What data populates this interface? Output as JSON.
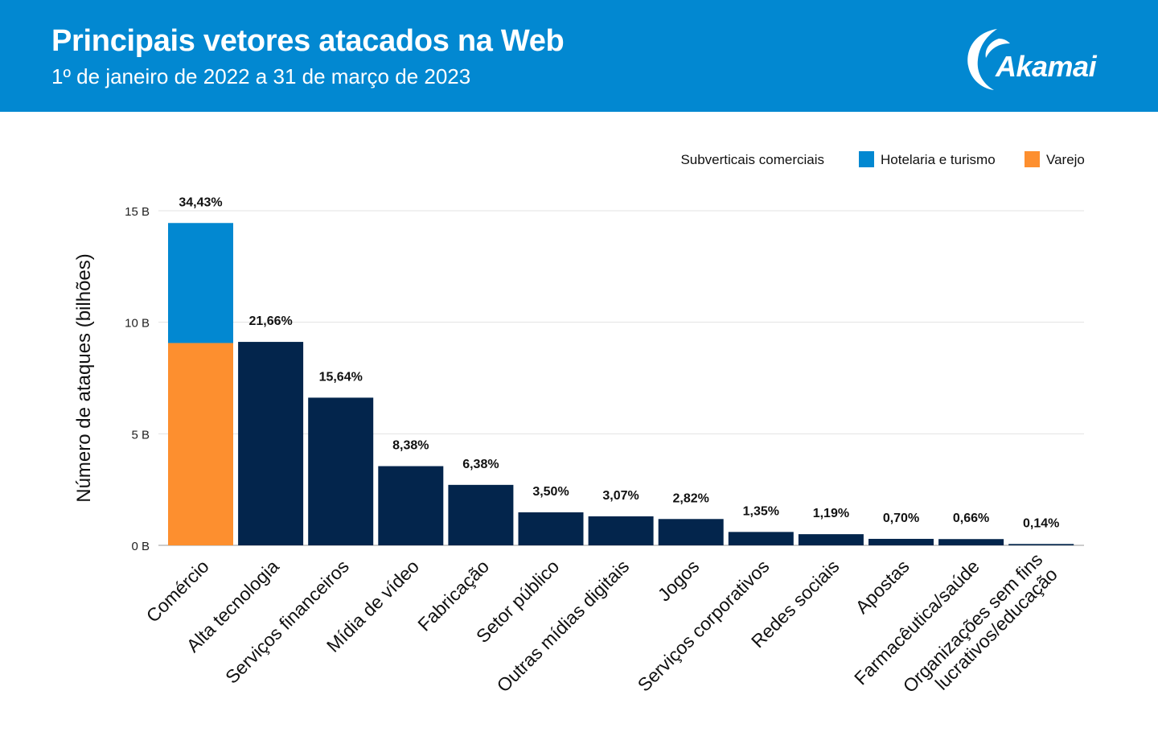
{
  "header": {
    "title": "Principais vetores atacados na Web",
    "subtitle": "1º de janeiro de 2022 a 31 de março de 2023",
    "logo_text": "Akamai"
  },
  "colors": {
    "header_bg": "#0288d1",
    "bar": "#03254c",
    "hospitality": "#0288d1",
    "retail": "#fd8f2f",
    "grid": "#e3e3e3"
  },
  "chart_data": {
    "type": "bar",
    "ylabel": "Número de ataques (bilhões)",
    "ylim": [
      0,
      15
    ],
    "yticks": [
      {
        "value": 0,
        "label": "0 B"
      },
      {
        "value": 5,
        "label": "5 B"
      },
      {
        "value": 10,
        "label": "10 B"
      },
      {
        "value": 15,
        "label": "15 B"
      }
    ],
    "grid": true,
    "legend": {
      "position": "top-right",
      "title": "Subverticais comerciais",
      "items": [
        {
          "label": "Hotelaria e turismo",
          "color": "#0288d1"
        },
        {
          "label": "Varejo",
          "color": "#fd8f2f"
        }
      ]
    },
    "categories": [
      "Comércio",
      "Alta tecnologia",
      "Serviços financeiros",
      "Mídia de vídeo",
      "Fabricação",
      "Setor público",
      "Outras mídias digitais",
      "Jogos",
      "Serviços corporativos",
      "Redes sociais",
      "Apostas",
      "Farmacêutica/saúde",
      "Organizações sem fins lucrativos/educação"
    ],
    "values": [
      14.45,
      9.12,
      6.62,
      3.55,
      2.71,
      1.48,
      1.3,
      1.18,
      0.6,
      0.5,
      0.29,
      0.28,
      0.06
    ],
    "percent_labels": [
      "34,43%",
      "21,66%",
      "15,64%",
      "8,38%",
      "6,38%",
      "3,50%",
      "3,07%",
      "2,82%",
      "1,35%",
      "1,19%",
      "0,70%",
      "0,66%",
      "0,14%"
    ],
    "stacked_first": [
      {
        "name": "Varejo",
        "value": 9.07
      },
      {
        "name": "Hotelaria e turismo",
        "value": 5.38
      }
    ]
  }
}
